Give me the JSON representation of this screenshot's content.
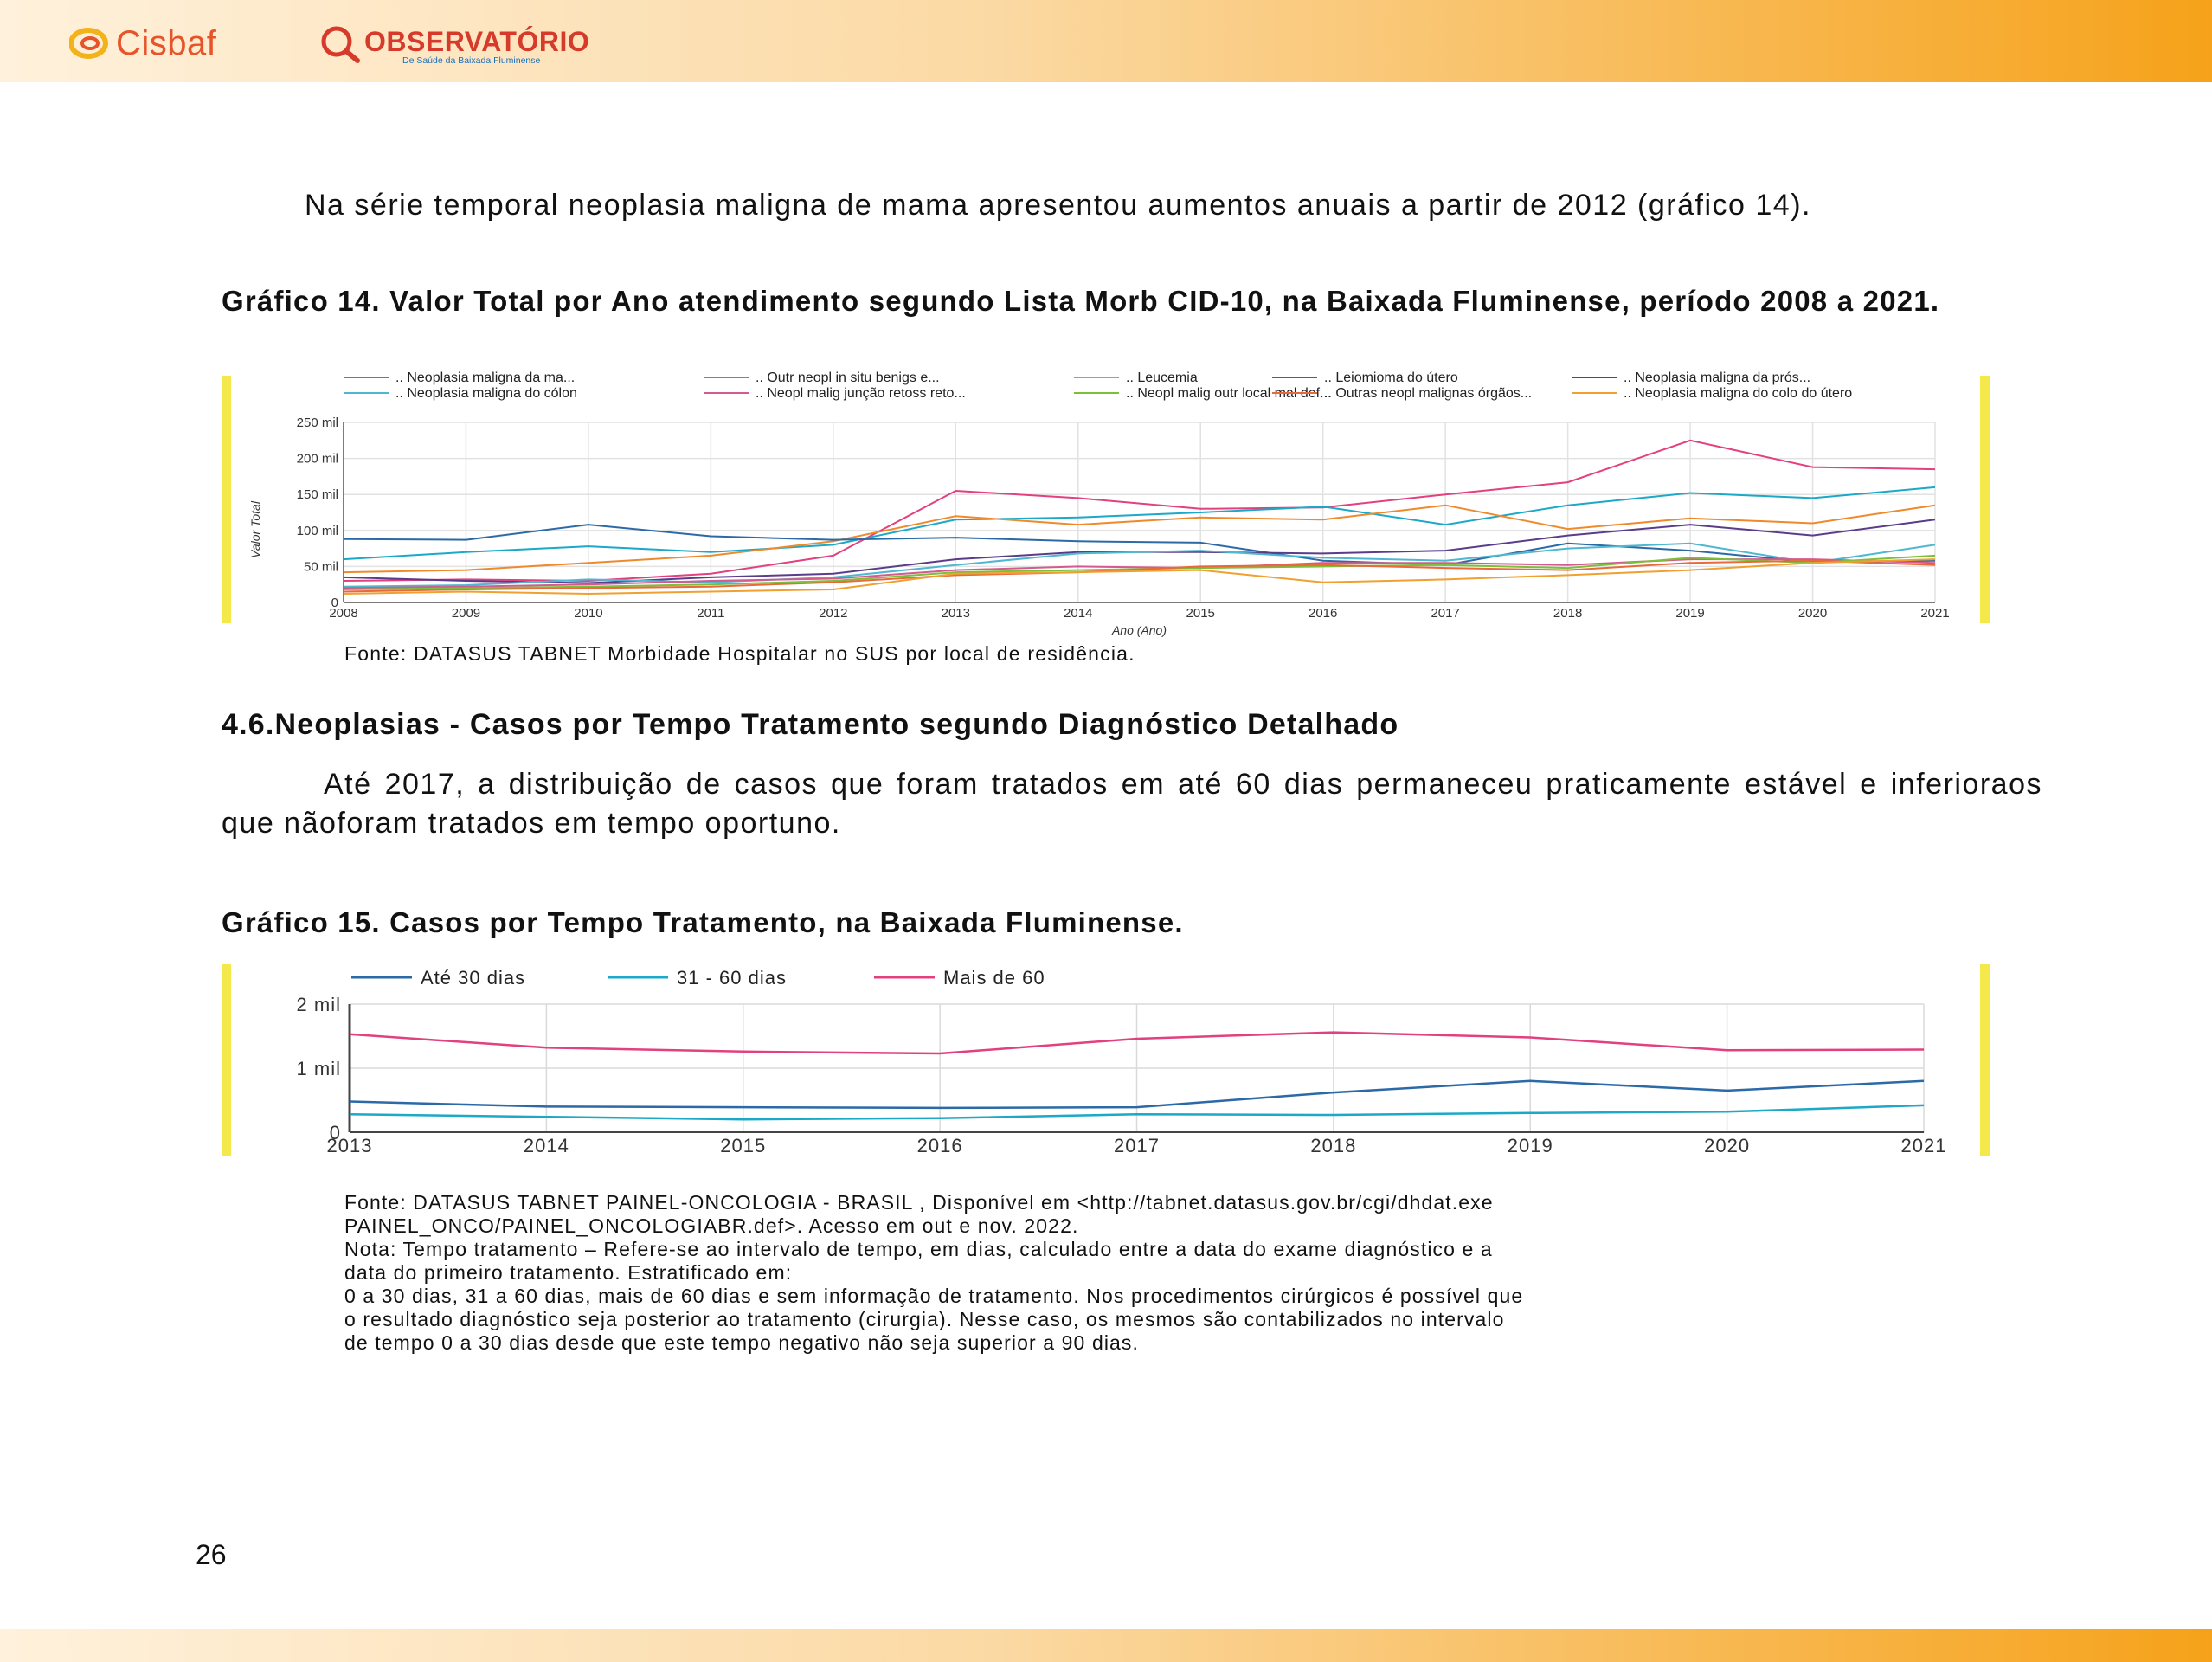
{
  "header": {
    "logo_cisbaf": "Cisbaf",
    "logo_observatorio": "OBSERVATÓRIO",
    "logo_observatorio_sub": "De Saúde da Baixada Fluminense"
  },
  "paragraph1": "Na série temporal neoplasia maligna de mama apresentou aumentos anuais a partir de 2012 (gráfico 14).",
  "chart14": {
    "caption": "Gráfico 14. Valor Total por Ano atendimento segundo Lista Morb CID-10, na Baixada Fluminense, período 2008 a 2021.",
    "source": "Fonte: DATASUS TABNET Morbidade Hospitalar no SUS por local de residência."
  },
  "section_heading": "4.6.Neoplasias - Casos por Tempo Tratamento segundo Diagnóstico Detalhado",
  "paragraph2": "Até 2017, a distribuição de casos que foram tratados em até 60 dias permaneceu praticamente estável e inferioraos que nãoforam tratados em tempo oportuno.",
  "chart15": {
    "caption": "Gráfico 15. Casos por Tempo Tratamento, na Baixada Fluminense.",
    "source_line1": "Fonte: DATASUS TABNET PAINEL-ONCOLOGIA - BRASIL , Disponível em <http://tabnet.datasus.gov.br/cgi/dhdat.exe",
    "source_line2": "PAINEL_ONCO/PAINEL_ONCOLOGIABR.def>. Acesso em out e nov. 2022.",
    "note_line1": "Nota: Tempo tratamento – Refere-se ao intervalo de tempo, em dias, calculado entre a data do exame diagnóstico e a",
    "note_line2": "data do primeiro tratamento. Estratificado em:",
    "note_line3": "0 a 30 dias, 31 a 60 dias, mais de 60 dias e sem informação de tratamento. Nos procedimentos cirúrgicos é possível que",
    "note_line4": "o resultado diagnóstico seja posterior ao tratamento (cirurgia). Nesse caso, os mesmos são contabilizados no intervalo",
    "note_line5": "de tempo 0 a 30 dias desde que este tempo negativo não seja superior a 90 dias."
  },
  "page_number": "26",
  "colors": {
    "side_bar": "#f5e84a",
    "header_orange": "#f6a21a"
  },
  "chart_data": [
    {
      "type": "line",
      "ylabel": "Valor Total",
      "xlabel": "Ano (Ano)",
      "ylim": [
        0,
        250000
      ],
      "x_ticks": [
        "2008",
        "2009",
        "2010",
        "2011",
        "2012",
        "2013",
        "2014",
        "2015",
        "2016",
        "2017",
        "2018",
        "2019",
        "2020",
        "2021"
      ],
      "y_ticks": [
        "0",
        "50 mil",
        "100 mil",
        "150 mil",
        "200 mil",
        "250 mil"
      ],
      "legend_position": "top",
      "grid": true,
      "series": [
        {
          "name": ".. Neoplasia maligna da ma...",
          "color": "#e2407e",
          "values": [
            30000,
            32000,
            30000,
            40000,
            65000,
            155000,
            145000,
            130000,
            132000,
            150000,
            167000,
            225000,
            188000,
            185000
          ]
        },
        {
          "name": ".. Outr neopl in situ benigs e...",
          "color": "#1ba9c7",
          "values": [
            60000,
            70000,
            78000,
            70000,
            80000,
            115000,
            118000,
            125000,
            133000,
            108000,
            135000,
            152000,
            145000,
            160000
          ]
        },
        {
          "name": ".. Leucemia",
          "color": "#ef8a2c",
          "values": [
            42000,
            45000,
            55000,
            65000,
            85000,
            120000,
            108000,
            118000,
            115000,
            135000,
            102000,
            117000,
            110000,
            135000
          ]
        },
        {
          "name": ".. Leiomioma do útero",
          "color": "#2b6aa6",
          "values": [
            88000,
            87000,
            108000,
            92000,
            87000,
            90000,
            85000,
            83000,
            58000,
            52000,
            82000,
            72000,
            56000,
            58000
          ]
        },
        {
          "name": ".. Neoplasia maligna da prós...",
          "color": "#5a3d8a",
          "values": [
            35000,
            30000,
            27000,
            35000,
            40000,
            60000,
            70000,
            70000,
            68000,
            72000,
            93000,
            108000,
            93000,
            115000
          ]
        },
        {
          "name": ".. Neoplasia maligna do cólon",
          "color": "#4fb7d0",
          "values": [
            22000,
            24000,
            32000,
            28000,
            35000,
            52000,
            68000,
            72000,
            62000,
            58000,
            75000,
            82000,
            55000,
            80000
          ]
        },
        {
          "name": ".. Neopl malig junção retoss reto...",
          "color": "#d45a8f",
          "values": [
            20000,
            22000,
            25000,
            30000,
            33000,
            45000,
            50000,
            48000,
            55000,
            55000,
            52000,
            60000,
            60000,
            55000
          ]
        },
        {
          "name": ".. Neopl malig outr local mal def...",
          "color": "#7cbf3a",
          "values": [
            18000,
            20000,
            22000,
            25000,
            30000,
            42000,
            45000,
            48000,
            50000,
            52000,
            48000,
            62000,
            55000,
            65000
          ]
        },
        {
          "name": ".. Outras neopl malignas órgãos...",
          "color": "#e86a3a",
          "values": [
            15000,
            18000,
            20000,
            22000,
            28000,
            38000,
            42000,
            50000,
            52000,
            48000,
            45000,
            55000,
            58000,
            52000
          ]
        },
        {
          "name": ".. Neoplasia maligna do colo do útero",
          "color": "#f0a030",
          "values": [
            12000,
            15000,
            12000,
            15000,
            18000,
            40000,
            42000,
            45000,
            28000,
            32000,
            38000,
            45000,
            55000,
            60000
          ]
        }
      ]
    },
    {
      "type": "line",
      "x": [
        "2013",
        "2014",
        "2015",
        "2016",
        "2017",
        "2018",
        "2019",
        "2020",
        "2021"
      ],
      "y_ticks": [
        "0",
        "1 mil",
        "2 mil"
      ],
      "ylim": [
        0,
        2000
      ],
      "legend_position": "top",
      "grid": true,
      "series": [
        {
          "name": "Até 30 dias",
          "color": "#2b6aa6",
          "values": [
            480,
            400,
            390,
            380,
            390,
            620,
            800,
            650,
            800
          ]
        },
        {
          "name": "31 - 60 dias",
          "color": "#1ba9c7",
          "values": [
            280,
            240,
            200,
            220,
            280,
            270,
            300,
            320,
            420
          ]
        },
        {
          "name": "Mais de 60",
          "color": "#e2407e",
          "values": [
            1530,
            1320,
            1260,
            1230,
            1460,
            1560,
            1480,
            1280,
            1290
          ]
        }
      ]
    }
  ]
}
